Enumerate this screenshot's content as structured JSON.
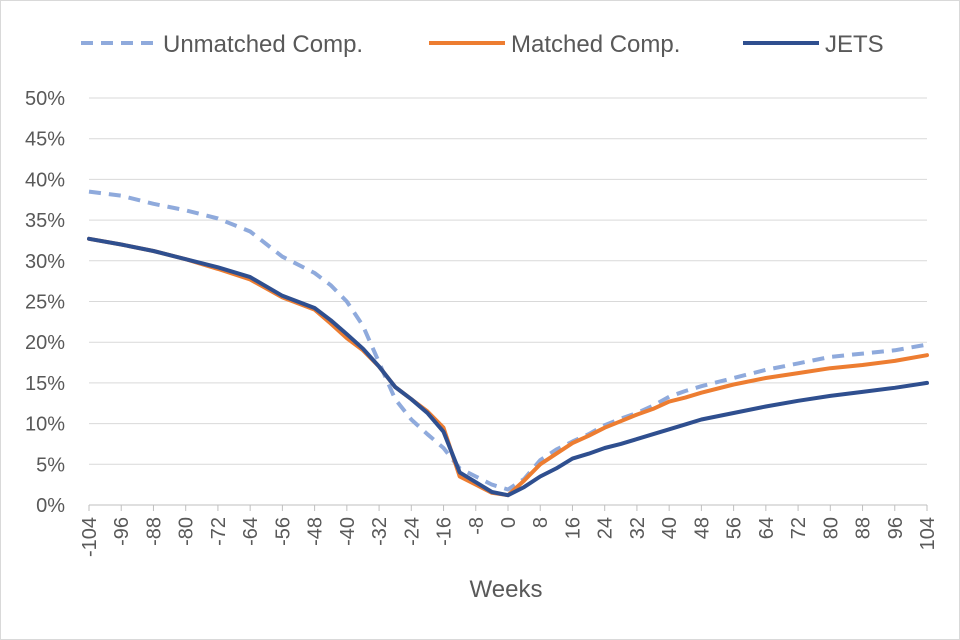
{
  "chart_data": {
    "type": "line",
    "title": "",
    "xlabel": "Weeks",
    "ylabel": "",
    "xlim": [
      -104,
      104
    ],
    "ylim": [
      0,
      50
    ],
    "x_ticks": [
      -104,
      -96,
      -88,
      -80,
      -72,
      -64,
      -56,
      -48,
      -40,
      -32,
      -24,
      -16,
      -8,
      0,
      8,
      16,
      24,
      32,
      40,
      48,
      56,
      64,
      72,
      80,
      88,
      96,
      104
    ],
    "x_tick_labels": [
      "-104",
      "-96",
      "-88",
      "-80",
      "-72",
      "-64",
      "-56",
      "-48",
      "-40",
      "-32",
      "-24",
      "-16",
      "-8",
      "0",
      "8",
      "16",
      "24",
      "32",
      "40",
      "48",
      "56",
      "64",
      "72",
      "80",
      "88",
      "96",
      "104"
    ],
    "y_ticks": [
      0,
      5,
      10,
      15,
      20,
      25,
      30,
      35,
      40,
      45,
      50
    ],
    "y_tick_labels": [
      "0%",
      "5%",
      "10%",
      "15%",
      "20%",
      "25%",
      "30%",
      "35%",
      "40%",
      "45%",
      "50%"
    ],
    "grid": "horizontal",
    "legend_position": "top",
    "series": [
      {
        "name": "Unmatched Comp.",
        "color": "#8faadc",
        "style": "dashed",
        "x": [
          -104,
          -96,
          -88,
          -80,
          -72,
          -64,
          -56,
          -48,
          -44,
          -40,
          -36,
          -32,
          -28,
          -24,
          -20,
          -16,
          -12,
          -8,
          -4,
          0,
          4,
          8,
          12,
          16,
          20,
          24,
          28,
          32,
          36,
          40,
          44,
          48,
          56,
          64,
          72,
          80,
          88,
          96,
          104
        ],
        "y": [
          38.5,
          38,
          37,
          36.2,
          35.2,
          33.6,
          30.5,
          28.5,
          27,
          25,
          22,
          17.5,
          13,
          10.5,
          8.7,
          7,
          4.5,
          3.5,
          2.5,
          1.9,
          3.2,
          5.5,
          6.8,
          7.8,
          8.7,
          9.8,
          10.6,
          11.3,
          12.2,
          13.3,
          14,
          14.6,
          15.6,
          16.6,
          17.4,
          18.2,
          18.6,
          19,
          19.7
        ]
      },
      {
        "name": "Matched Comp.",
        "color": "#ed7d31",
        "style": "solid",
        "x": [
          -104,
          -96,
          -88,
          -80,
          -72,
          -64,
          -56,
          -48,
          -44,
          -40,
          -36,
          -32,
          -28,
          -24,
          -20,
          -16,
          -12,
          -8,
          -4,
          0,
          4,
          8,
          12,
          16,
          20,
          24,
          28,
          32,
          36,
          40,
          44,
          48,
          56,
          64,
          72,
          80,
          88,
          96,
          104
        ],
        "y": [
          32.7,
          32,
          31.2,
          30.2,
          29,
          27.7,
          25.5,
          24,
          22.3,
          20.5,
          19,
          17,
          14.5,
          13,
          11.5,
          9.5,
          3.5,
          2.5,
          1.5,
          1.2,
          3,
          5,
          6.3,
          7.6,
          8.5,
          9.5,
          10.3,
          11.1,
          11.8,
          12.7,
          13.2,
          13.8,
          14.8,
          15.6,
          16.2,
          16.8,
          17.2,
          17.7,
          18.4
        ]
      },
      {
        "name": "JETS",
        "color": "#2f4f8f",
        "style": "solid",
        "x": [
          -104,
          -96,
          -88,
          -80,
          -72,
          -64,
          -56,
          -48,
          -44,
          -40,
          -36,
          -32,
          -28,
          -24,
          -20,
          -16,
          -12,
          -8,
          -4,
          0,
          4,
          8,
          12,
          16,
          20,
          24,
          28,
          32,
          36,
          40,
          44,
          48,
          56,
          64,
          72,
          80,
          88,
          96,
          104
        ],
        "y": [
          32.7,
          32,
          31.2,
          30.2,
          29.2,
          28,
          25.7,
          24.2,
          22.7,
          21,
          19.2,
          17,
          14.5,
          13,
          11.3,
          9,
          4,
          2.8,
          1.6,
          1.2,
          2.2,
          3.5,
          4.5,
          5.7,
          6.3,
          7,
          7.5,
          8.1,
          8.7,
          9.3,
          9.9,
          10.5,
          11.3,
          12.1,
          12.8,
          13.4,
          13.9,
          14.4,
          15
        ]
      }
    ]
  }
}
